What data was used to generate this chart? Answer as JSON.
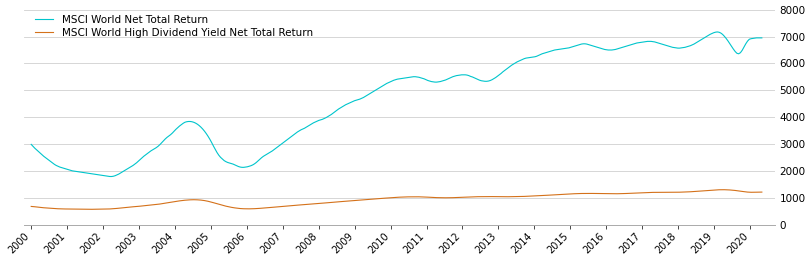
{
  "legend1": "MSCI World Net Total Return",
  "legend2": "MSCI World High Dividend Yield Net Total Return",
  "color1": "#00C5CC",
  "color2": "#D4711A",
  "ylim": [
    0,
    8000
  ],
  "yticks": [
    0,
    1000,
    2000,
    3000,
    4000,
    5000,
    6000,
    7000,
    8000
  ],
  "xtick_years": [
    "2000",
    "2001",
    "2002",
    "2003",
    "2004",
    "2005",
    "2006",
    "2007",
    "2008",
    "2009",
    "2010",
    "2011",
    "2012",
    "2013",
    "2014",
    "2015",
    "2016",
    "2017",
    "2018",
    "2019",
    "2020"
  ],
  "background_color": "#ffffff",
  "grid_color": "#d0d0d0",
  "msci_world": [
    3000,
    2930,
    2860,
    2800,
    2740,
    2680,
    2620,
    2560,
    2510,
    2460,
    2410,
    2360,
    2310,
    2260,
    2220,
    2190,
    2160,
    2140,
    2120,
    2100,
    2080,
    2060,
    2040,
    2020,
    2010,
    2000,
    1990,
    1980,
    1970,
    1960,
    1950,
    1940,
    1930,
    1920,
    1910,
    1900,
    1890,
    1880,
    1870,
    1860,
    1850,
    1840,
    1830,
    1820,
    1810,
    1810,
    1820,
    1840,
    1870,
    1900,
    1940,
    1980,
    2020,
    2060,
    2100,
    2140,
    2180,
    2220,
    2270,
    2320,
    2380,
    2440,
    2500,
    2560,
    2610,
    2660,
    2710,
    2760,
    2800,
    2840,
    2880,
    2930,
    2990,
    3060,
    3130,
    3200,
    3260,
    3310,
    3360,
    3420,
    3490,
    3560,
    3620,
    3680,
    3730,
    3780,
    3820,
    3840,
    3850,
    3850,
    3840,
    3820,
    3790,
    3750,
    3700,
    3640,
    3570,
    3490,
    3400,
    3300,
    3190,
    3070,
    2940,
    2820,
    2700,
    2600,
    2520,
    2460,
    2400,
    2360,
    2330,
    2310,
    2290,
    2270,
    2240,
    2210,
    2180,
    2160,
    2150,
    2150,
    2160,
    2170,
    2190,
    2210,
    2240,
    2280,
    2330,
    2390,
    2450,
    2510,
    2560,
    2600,
    2640,
    2680,
    2720,
    2760,
    2810,
    2860,
    2910,
    2960,
    3010,
    3060,
    3110,
    3160,
    3210,
    3260,
    3310,
    3360,
    3410,
    3460,
    3500,
    3540,
    3570,
    3600,
    3640,
    3680,
    3720,
    3760,
    3800,
    3830,
    3860,
    3890,
    3910,
    3930,
    3960,
    3990,
    4030,
    4070,
    4110,
    4160,
    4210,
    4260,
    4310,
    4350,
    4390,
    4430,
    4470,
    4500,
    4530,
    4560,
    4590,
    4620,
    4640,
    4660,
    4680,
    4710,
    4740,
    4780,
    4820,
    4860,
    4900,
    4940,
    4980,
    5020,
    5060,
    5100,
    5140,
    5180,
    5220,
    5260,
    5290,
    5320,
    5350,
    5380,
    5400,
    5420,
    5430,
    5440,
    5450,
    5460,
    5470,
    5480,
    5490,
    5500,
    5510,
    5510,
    5500,
    5490,
    5470,
    5450,
    5430,
    5400,
    5370,
    5350,
    5330,
    5320,
    5310,
    5310,
    5320,
    5330,
    5350,
    5370,
    5390,
    5420,
    5450,
    5480,
    5510,
    5530,
    5550,
    5560,
    5570,
    5580,
    5580,
    5580,
    5570,
    5550,
    5520,
    5500,
    5470,
    5440,
    5410,
    5380,
    5360,
    5350,
    5340,
    5340,
    5350,
    5370,
    5400,
    5440,
    5480,
    5530,
    5580,
    5630,
    5690,
    5740,
    5790,
    5840,
    5890,
    5940,
    5980,
    6020,
    6060,
    6090,
    6120,
    6150,
    6180,
    6200,
    6210,
    6220,
    6230,
    6240,
    6250,
    6270,
    6300,
    6330,
    6360,
    6380,
    6400,
    6420,
    6440,
    6460,
    6480,
    6500,
    6510,
    6520,
    6530,
    6540,
    6550,
    6560,
    6570,
    6580,
    6600,
    6620,
    6640,
    6660,
    6680,
    6700,
    6720,
    6730,
    6730,
    6720,
    6700,
    6680,
    6660,
    6640,
    6620,
    6600,
    6580,
    6560,
    6540,
    6520,
    6510,
    6500,
    6500,
    6500,
    6510,
    6520,
    6540,
    6560,
    6580,
    6600,
    6620,
    6640,
    6660,
    6680,
    6700,
    6720,
    6740,
    6760,
    6770,
    6780,
    6790,
    6800,
    6810,
    6820,
    6820,
    6820,
    6810,
    6800,
    6780,
    6760,
    6740,
    6720,
    6700,
    6680,
    6660,
    6640,
    6620,
    6600,
    6590,
    6580,
    6570,
    6570,
    6580,
    6590,
    6600,
    6620,
    6640,
    6660,
    6690,
    6720,
    6760,
    6800,
    6840,
    6880,
    6920,
    6960,
    7000,
    7040,
    7080,
    7110,
    7140,
    7160,
    7170,
    7160,
    7130,
    7080,
    7010,
    6930,
    6840,
    6740,
    6640,
    6540,
    6450,
    6380,
    6360,
    6400,
    6490,
    6610,
    6730,
    6830,
    6900,
    6920,
    6930,
    6940,
    6950,
    6950,
    6950,
    6950
  ],
  "msci_hdyield": [
    700,
    695,
    688,
    680,
    672,
    664,
    657,
    651,
    646,
    641,
    636,
    631,
    626,
    621,
    617,
    614,
    611,
    609,
    607,
    606,
    605,
    604,
    603,
    602,
    601,
    600,
    599,
    598,
    597,
    597,
    596,
    595,
    594,
    594,
    594,
    595,
    596,
    597,
    598,
    599,
    600,
    601,
    602,
    604,
    607,
    611,
    616,
    621,
    627,
    634,
    641,
    648,
    655,
    662,
    669,
    675,
    681,
    687,
    692,
    698,
    704,
    710,
    717,
    724,
    731,
    737,
    743,
    749,
    755,
    762,
    770,
    779,
    789,
    799,
    809,
    820,
    831,
    843,
    854,
    865,
    876,
    887,
    897,
    906,
    915,
    923,
    930,
    936,
    941,
    945,
    948,
    949,
    948,
    945,
    941,
    935,
    927,
    917,
    905,
    891,
    875,
    857,
    839,
    820,
    800,
    781,
    762,
    743,
    726,
    710,
    695,
    681,
    668,
    656,
    646,
    637,
    629,
    622,
    617,
    614,
    612,
    611,
    611,
    612,
    614,
    617,
    620,
    624,
    629,
    634,
    639,
    644,
    649,
    655,
    661,
    667,
    673,
    679,
    685,
    691,
    697,
    703,
    709,
    715,
    720,
    726,
    731,
    737,
    742,
    747,
    753,
    758,
    763,
    769,
    774,
    779,
    785,
    790,
    795,
    800,
    806,
    811,
    817,
    822,
    827,
    832,
    838,
    843,
    849,
    854,
    860,
    865,
    871,
    876,
    882,
    887,
    893,
    898,
    904,
    909,
    915,
    920,
    925,
    930,
    935,
    940,
    945,
    950,
    955,
    960,
    965,
    970,
    976,
    981,
    987,
    992,
    997,
    1002,
    1007,
    1012,
    1017,
    1022,
    1027,
    1032,
    1036,
    1040,
    1043,
    1046,
    1049,
    1051,
    1053,
    1055,
    1056,
    1057,
    1058,
    1058,
    1058,
    1057,
    1055,
    1053,
    1050,
    1047,
    1044,
    1040,
    1037,
    1033,
    1030,
    1027,
    1025,
    1023,
    1022,
    1021,
    1021,
    1021,
    1022,
    1023,
    1025,
    1027,
    1029,
    1032,
    1035,
    1038,
    1041,
    1044,
    1047,
    1050,
    1053,
    1055,
    1057,
    1059,
    1061,
    1062,
    1063,
    1064,
    1065,
    1065,
    1065,
    1065,
    1065,
    1064,
    1064,
    1063,
    1062,
    1061,
    1061,
    1060,
    1060,
    1060,
    1061,
    1061,
    1062,
    1063,
    1064,
    1066,
    1068,
    1070,
    1072,
    1075,
    1077,
    1080,
    1083,
    1086,
    1090,
    1093,
    1097,
    1100,
    1104,
    1107,
    1111,
    1115,
    1119,
    1123,
    1127,
    1130,
    1134,
    1138,
    1142,
    1146,
    1150,
    1154,
    1158,
    1162,
    1165,
    1168,
    1171,
    1174,
    1176,
    1178,
    1180,
    1181,
    1182,
    1183,
    1183,
    1183,
    1182,
    1181,
    1180,
    1178,
    1177,
    1175,
    1173,
    1172,
    1171,
    1170,
    1169,
    1169,
    1170,
    1170,
    1171,
    1172,
    1174,
    1175,
    1177,
    1180,
    1182,
    1185,
    1188,
    1191,
    1194,
    1197,
    1200,
    1203,
    1206,
    1209,
    1212,
    1215,
    1217,
    1219,
    1221,
    1222,
    1223,
    1224,
    1225,
    1225,
    1225,
    1224,
    1224,
    1224,
    1224,
    1224,
    1224,
    1225,
    1226,
    1228,
    1230,
    1232,
    1234,
    1237,
    1240,
    1244,
    1248,
    1252,
    1256,
    1261,
    1266,
    1271,
    1276,
    1281,
    1286,
    1292,
    1297,
    1302,
    1307,
    1311,
    1315,
    1318,
    1320,
    1321,
    1320,
    1318,
    1315,
    1311,
    1306,
    1300,
    1293,
    1285,
    1276,
    1267,
    1257,
    1248,
    1239,
    1232,
    1227,
    1225,
    1225,
    1226,
    1228,
    1230,
    1232,
    1232
  ]
}
